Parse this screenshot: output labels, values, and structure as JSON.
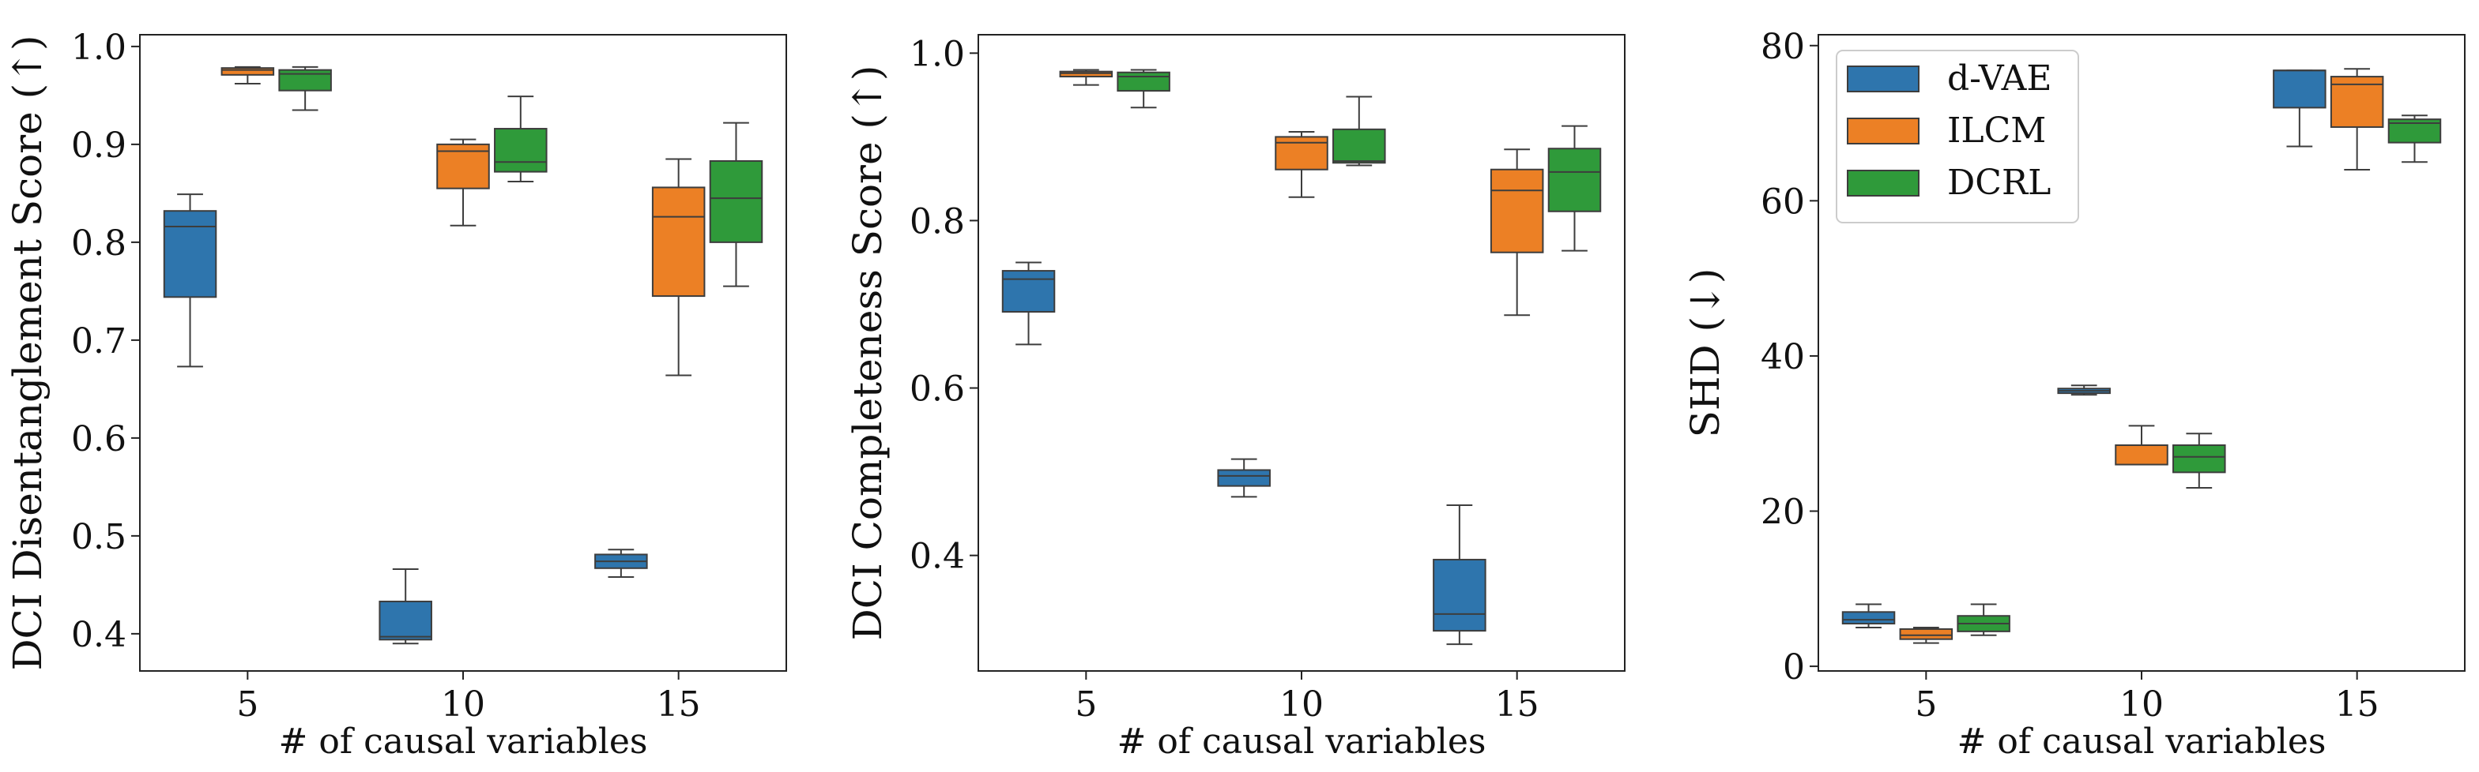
{
  "colors": {
    "d-VAE": "#2e75ad",
    "ILCM": "#ec8025",
    "DCRL": "#2f9a3a"
  },
  "chart_data": [
    {
      "type": "box",
      "ylabel": "DCI Disentanglement Score (↑)",
      "xlabel": "# of causal variables",
      "categories": [
        "5",
        "10",
        "15"
      ],
      "ylim": [
        0.362,
        1.012
      ],
      "yticks": [
        0.4,
        0.5,
        0.6,
        0.7,
        0.8,
        0.9,
        1.0
      ],
      "ytick_labels": [
        "0.4",
        "0.5",
        "0.6",
        "0.7",
        "0.8",
        "0.9",
        "1.0"
      ],
      "legend": false,
      "series": [
        {
          "name": "d-VAE",
          "boxes": [
            {
              "whislo": 0.673,
              "q1": 0.744,
              "med": 0.816,
              "q3": 0.832,
              "whishi": 0.849
            },
            {
              "whislo": 0.39,
              "q1": 0.394,
              "med": 0.397,
              "q3": 0.433,
              "whishi": 0.466
            },
            {
              "whislo": 0.458,
              "q1": 0.467,
              "med": 0.474,
              "q3": 0.481,
              "whishi": 0.486
            }
          ]
        },
        {
          "name": "ILCM",
          "boxes": [
            {
              "whislo": 0.962,
              "q1": 0.971,
              "med": 0.976,
              "q3": 0.978,
              "whishi": 0.979
            },
            {
              "whislo": 0.817,
              "q1": 0.855,
              "med": 0.893,
              "q3": 0.9,
              "whishi": 0.905
            },
            {
              "whislo": 0.664,
              "q1": 0.745,
              "med": 0.826,
              "q3": 0.856,
              "whishi": 0.885
            }
          ]
        },
        {
          "name": "DCRL",
          "boxes": [
            {
              "whislo": 0.935,
              "q1": 0.955,
              "med": 0.972,
              "q3": 0.976,
              "whishi": 0.979
            },
            {
              "whislo": 0.862,
              "q1": 0.872,
              "med": 0.882,
              "q3": 0.916,
              "whishi": 0.949
            },
            {
              "whislo": 0.755,
              "q1": 0.8,
              "med": 0.845,
              "q3": 0.883,
              "whishi": 0.922
            }
          ]
        }
      ]
    },
    {
      "type": "box",
      "ylabel": "DCI Completeness Score (↑)",
      "xlabel": "# of causal variables",
      "categories": [
        "5",
        "10",
        "15"
      ],
      "ylim": [
        0.262,
        1.022
      ],
      "yticks": [
        0.4,
        0.6,
        0.8,
        1.0
      ],
      "ytick_labels": [
        "0.4",
        "0.6",
        "0.8",
        "1.0"
      ],
      "legend": false,
      "series": [
        {
          "name": "d-VAE",
          "boxes": [
            {
              "whislo": 0.652,
              "q1": 0.691,
              "med": 0.73,
              "q3": 0.74,
              "whishi": 0.75
            },
            {
              "whislo": 0.47,
              "q1": 0.483,
              "med": 0.495,
              "q3": 0.502,
              "whishi": 0.515
            },
            {
              "whislo": 0.294,
              "q1": 0.31,
              "med": 0.33,
              "q3": 0.395,
              "whishi": 0.46
            }
          ]
        },
        {
          "name": "ILCM",
          "boxes": [
            {
              "whislo": 0.962,
              "q1": 0.972,
              "med": 0.976,
              "q3": 0.978,
              "whishi": 0.98
            },
            {
              "whislo": 0.828,
              "q1": 0.861,
              "med": 0.893,
              "q3": 0.9,
              "whishi": 0.906
            },
            {
              "whislo": 0.687,
              "q1": 0.762,
              "med": 0.836,
              "q3": 0.861,
              "whishi": 0.885
            }
          ]
        },
        {
          "name": "DCRL",
          "boxes": [
            {
              "whislo": 0.935,
              "q1": 0.955,
              "med": 0.972,
              "q3": 0.977,
              "whishi": 0.98
            },
            {
              "whislo": 0.866,
              "q1": 0.869,
              "med": 0.871,
              "q3": 0.909,
              "whishi": 0.948
            },
            {
              "whislo": 0.764,
              "q1": 0.811,
              "med": 0.858,
              "q3": 0.886,
              "whishi": 0.913
            }
          ]
        }
      ]
    },
    {
      "type": "box",
      "ylabel": "SHD (↓)",
      "xlabel": "# of causal variables",
      "categories": [
        "5",
        "10",
        "15"
      ],
      "ylim": [
        -0.6,
        81.4
      ],
      "yticks": [
        0,
        20,
        40,
        60,
        80
      ],
      "ytick_labels": [
        "0",
        "20",
        "40",
        "60",
        "80"
      ],
      "legend": true,
      "legend_position": "upper-left",
      "series": [
        {
          "name": "d-VAE",
          "boxes": [
            {
              "whislo": 5,
              "q1": 5.5,
              "med": 6,
              "q3": 7,
              "whishi": 8
            },
            {
              "whislo": 35,
              "q1": 35.2,
              "med": 35.5,
              "q3": 35.8,
              "whishi": 36.2
            },
            {
              "whislo": 67,
              "q1": 72,
              "med": 76.8,
              "q3": 76.8,
              "whishi": 76.8
            }
          ]
        },
        {
          "name": "ILCM",
          "boxes": [
            {
              "whislo": 3,
              "q1": 3.5,
              "med": 4,
              "q3": 4.8,
              "whishi": 5
            },
            {
              "whislo": 26,
              "q1": 26,
              "med": 28.5,
              "q3": 28.5,
              "whishi": 31
            },
            {
              "whislo": 64,
              "q1": 69.5,
              "med": 75,
              "q3": 76,
              "whishi": 77
            }
          ]
        },
        {
          "name": "DCRL",
          "boxes": [
            {
              "whislo": 4,
              "q1": 4.5,
              "med": 5.5,
              "q3": 6.5,
              "whishi": 8
            },
            {
              "whislo": 23,
              "q1": 25,
              "med": 27,
              "q3": 28.5,
              "whishi": 30
            },
            {
              "whislo": 65,
              "q1": 67.5,
              "med": 70,
              "q3": 70.5,
              "whishi": 71
            }
          ]
        }
      ]
    }
  ]
}
